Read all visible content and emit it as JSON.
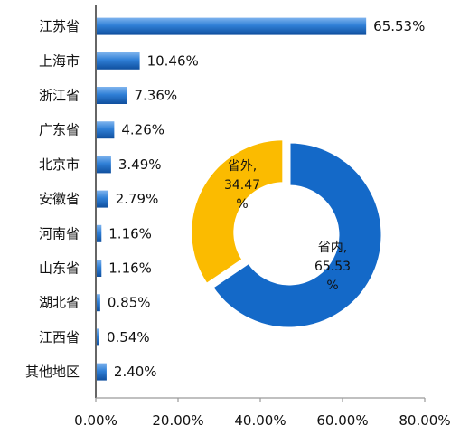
{
  "chart_data": [
    {
      "type": "bar",
      "orientation": "horizontal",
      "categories": [
        "江苏省",
        "上海市",
        "浙江省",
        "广东省",
        "北京市",
        "安徽省",
        "河南省",
        "山东省",
        "湖北省",
        "江西省",
        "其他地区"
      ],
      "values": [
        65.53,
        10.46,
        7.36,
        4.26,
        3.49,
        2.79,
        1.16,
        1.16,
        0.85,
        0.54,
        2.4
      ],
      "value_labels": [
        "65.53%",
        "10.46%",
        "7.36%",
        "4.26%",
        "3.49%",
        "2.79%",
        "1.16%",
        "1.16%",
        "0.85%",
        "0.54%",
        "2.40%"
      ],
      "xlim": [
        0,
        80
      ],
      "x_ticks": [
        "0.00%",
        "20.00%",
        "40.00%",
        "60.00%",
        "80.00%"
      ],
      "grid": false,
      "bar_color": "#1f6fc8"
    },
    {
      "type": "pie",
      "donut": true,
      "slices": [
        {
          "label": "省内",
          "value": 65.53,
          "text": [
            "省内,",
            "65.53",
            "%"
          ],
          "color": "#1469c8"
        },
        {
          "label": "省外",
          "value": 34.47,
          "text": [
            "省外,",
            "34.47",
            "%"
          ],
          "color": "#fbbb00"
        }
      ]
    }
  ]
}
